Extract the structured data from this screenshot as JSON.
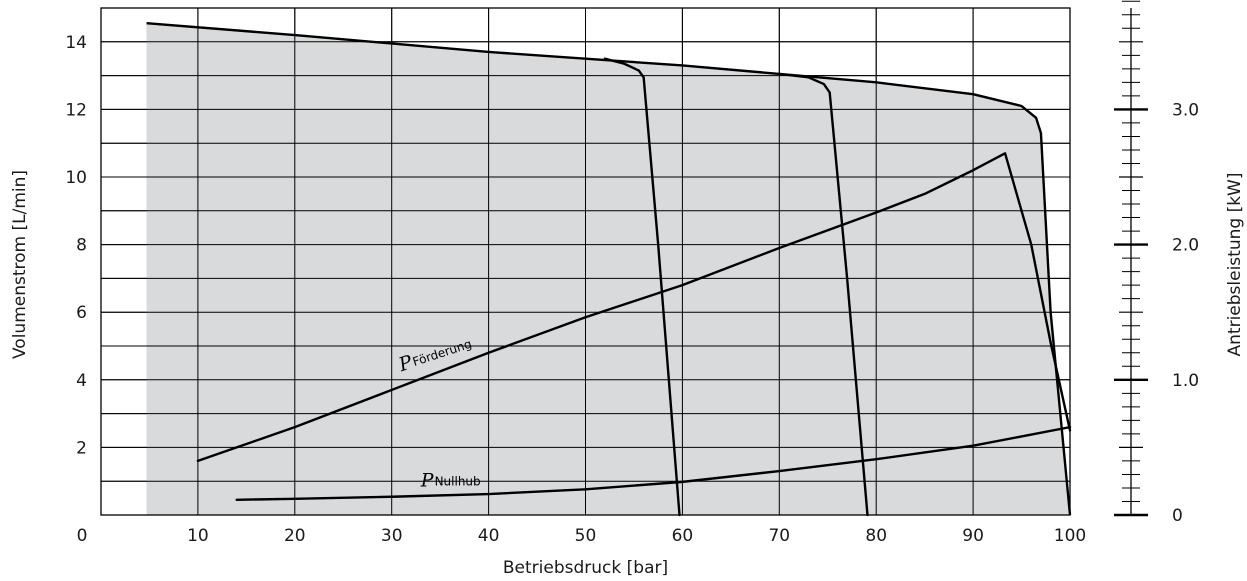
{
  "chart_data": {
    "type": "line",
    "title": "",
    "xlabel": "Betriebsdruck [bar]",
    "ylabel": "Volumenstrom [L/min]",
    "y2label": "Antriebsleistung [kW]",
    "xlim": [
      0,
      100
    ],
    "ylim": [
      0,
      15
    ],
    "y2lim": [
      0,
      3.75
    ],
    "grid": true,
    "shading_color": "#d9dadb",
    "line_color": "#000000",
    "x_ticks": [
      {
        "value": 10,
        "label": "10"
      },
      {
        "value": 20,
        "label": "20"
      },
      {
        "value": 30,
        "label": "30"
      },
      {
        "value": 40,
        "label": "40"
      },
      {
        "value": 50,
        "label": "50"
      },
      {
        "value": 60,
        "label": "60"
      },
      {
        "value": 70,
        "label": "70"
      },
      {
        "value": 80,
        "label": "80"
      },
      {
        "value": 90,
        "label": "90"
      },
      {
        "value": 100,
        "label": "100"
      }
    ],
    "y_ticks": [
      {
        "value": 2,
        "label": "2"
      },
      {
        "value": 4,
        "label": "4"
      },
      {
        "value": 6,
        "label": "6"
      },
      {
        "value": 8,
        "label": "8"
      },
      {
        "value": 10,
        "label": "10"
      },
      {
        "value": 12,
        "label": "12"
      },
      {
        "value": 14,
        "label": "14"
      }
    ],
    "origin_label": "0",
    "y2_ticks": [
      {
        "value": 0,
        "label": "0"
      },
      {
        "value": 1.0,
        "label": "1.0"
      },
      {
        "value": 2.0,
        "label": "2.0"
      },
      {
        "value": 3.0,
        "label": "3.0"
      }
    ],
    "y2_minor_step": 0.1,
    "envelope": [
      [
        4.7,
        14.55
      ],
      [
        20,
        14.2
      ],
      [
        40,
        13.7
      ],
      [
        60,
        13.3
      ],
      [
        80,
        12.8
      ],
      [
        90,
        12.45
      ],
      [
        95,
        12.1
      ],
      [
        96.5,
        11.75
      ],
      [
        97.0,
        11.3
      ],
      [
        98.0,
        6.0
      ],
      [
        100,
        0.0
      ]
    ],
    "series": [
      {
        "x": [
          52,
          54,
          55.5,
          56.0,
          57.5,
          59.7
        ],
        "y": [
          13.5,
          13.35,
          13.15,
          12.95,
          8.0,
          0.0
        ]
      },
      {
        "x": [
          70,
          73,
          74.6,
          75.2,
          77.0,
          79.1
        ],
        "y": [
          13.05,
          12.95,
          12.75,
          12.5,
          7.0,
          0.0
        ]
      },
      {
        "label_main": "P",
        "label_sub": "Förderung",
        "x": [
          10,
          20,
          30,
          40,
          50,
          60,
          70,
          80,
          85,
          90,
          93.3,
          96,
          98,
          100
        ],
        "y": [
          1.6,
          2.6,
          3.7,
          4.8,
          5.85,
          6.8,
          7.9,
          8.95,
          9.5,
          10.2,
          10.7,
          8.0,
          5.1,
          2.5
        ]
      },
      {
        "label_main": "P",
        "label_sub": "Nullhub",
        "x": [
          14,
          20,
          30,
          40,
          50,
          60,
          70,
          80,
          90,
          100
        ],
        "y": [
          0.45,
          0.48,
          0.54,
          0.62,
          0.76,
          0.98,
          1.3,
          1.65,
          2.05,
          2.6
        ]
      }
    ],
    "annotations": [
      {
        "text_main": "P",
        "text_sub": "Förderung",
        "x": 31,
        "y": 4.25,
        "rotate": -18
      },
      {
        "text_main": "P",
        "text_sub": "Nullhub",
        "x": 33,
        "y": 0.85,
        "rotate": 0
      }
    ]
  }
}
